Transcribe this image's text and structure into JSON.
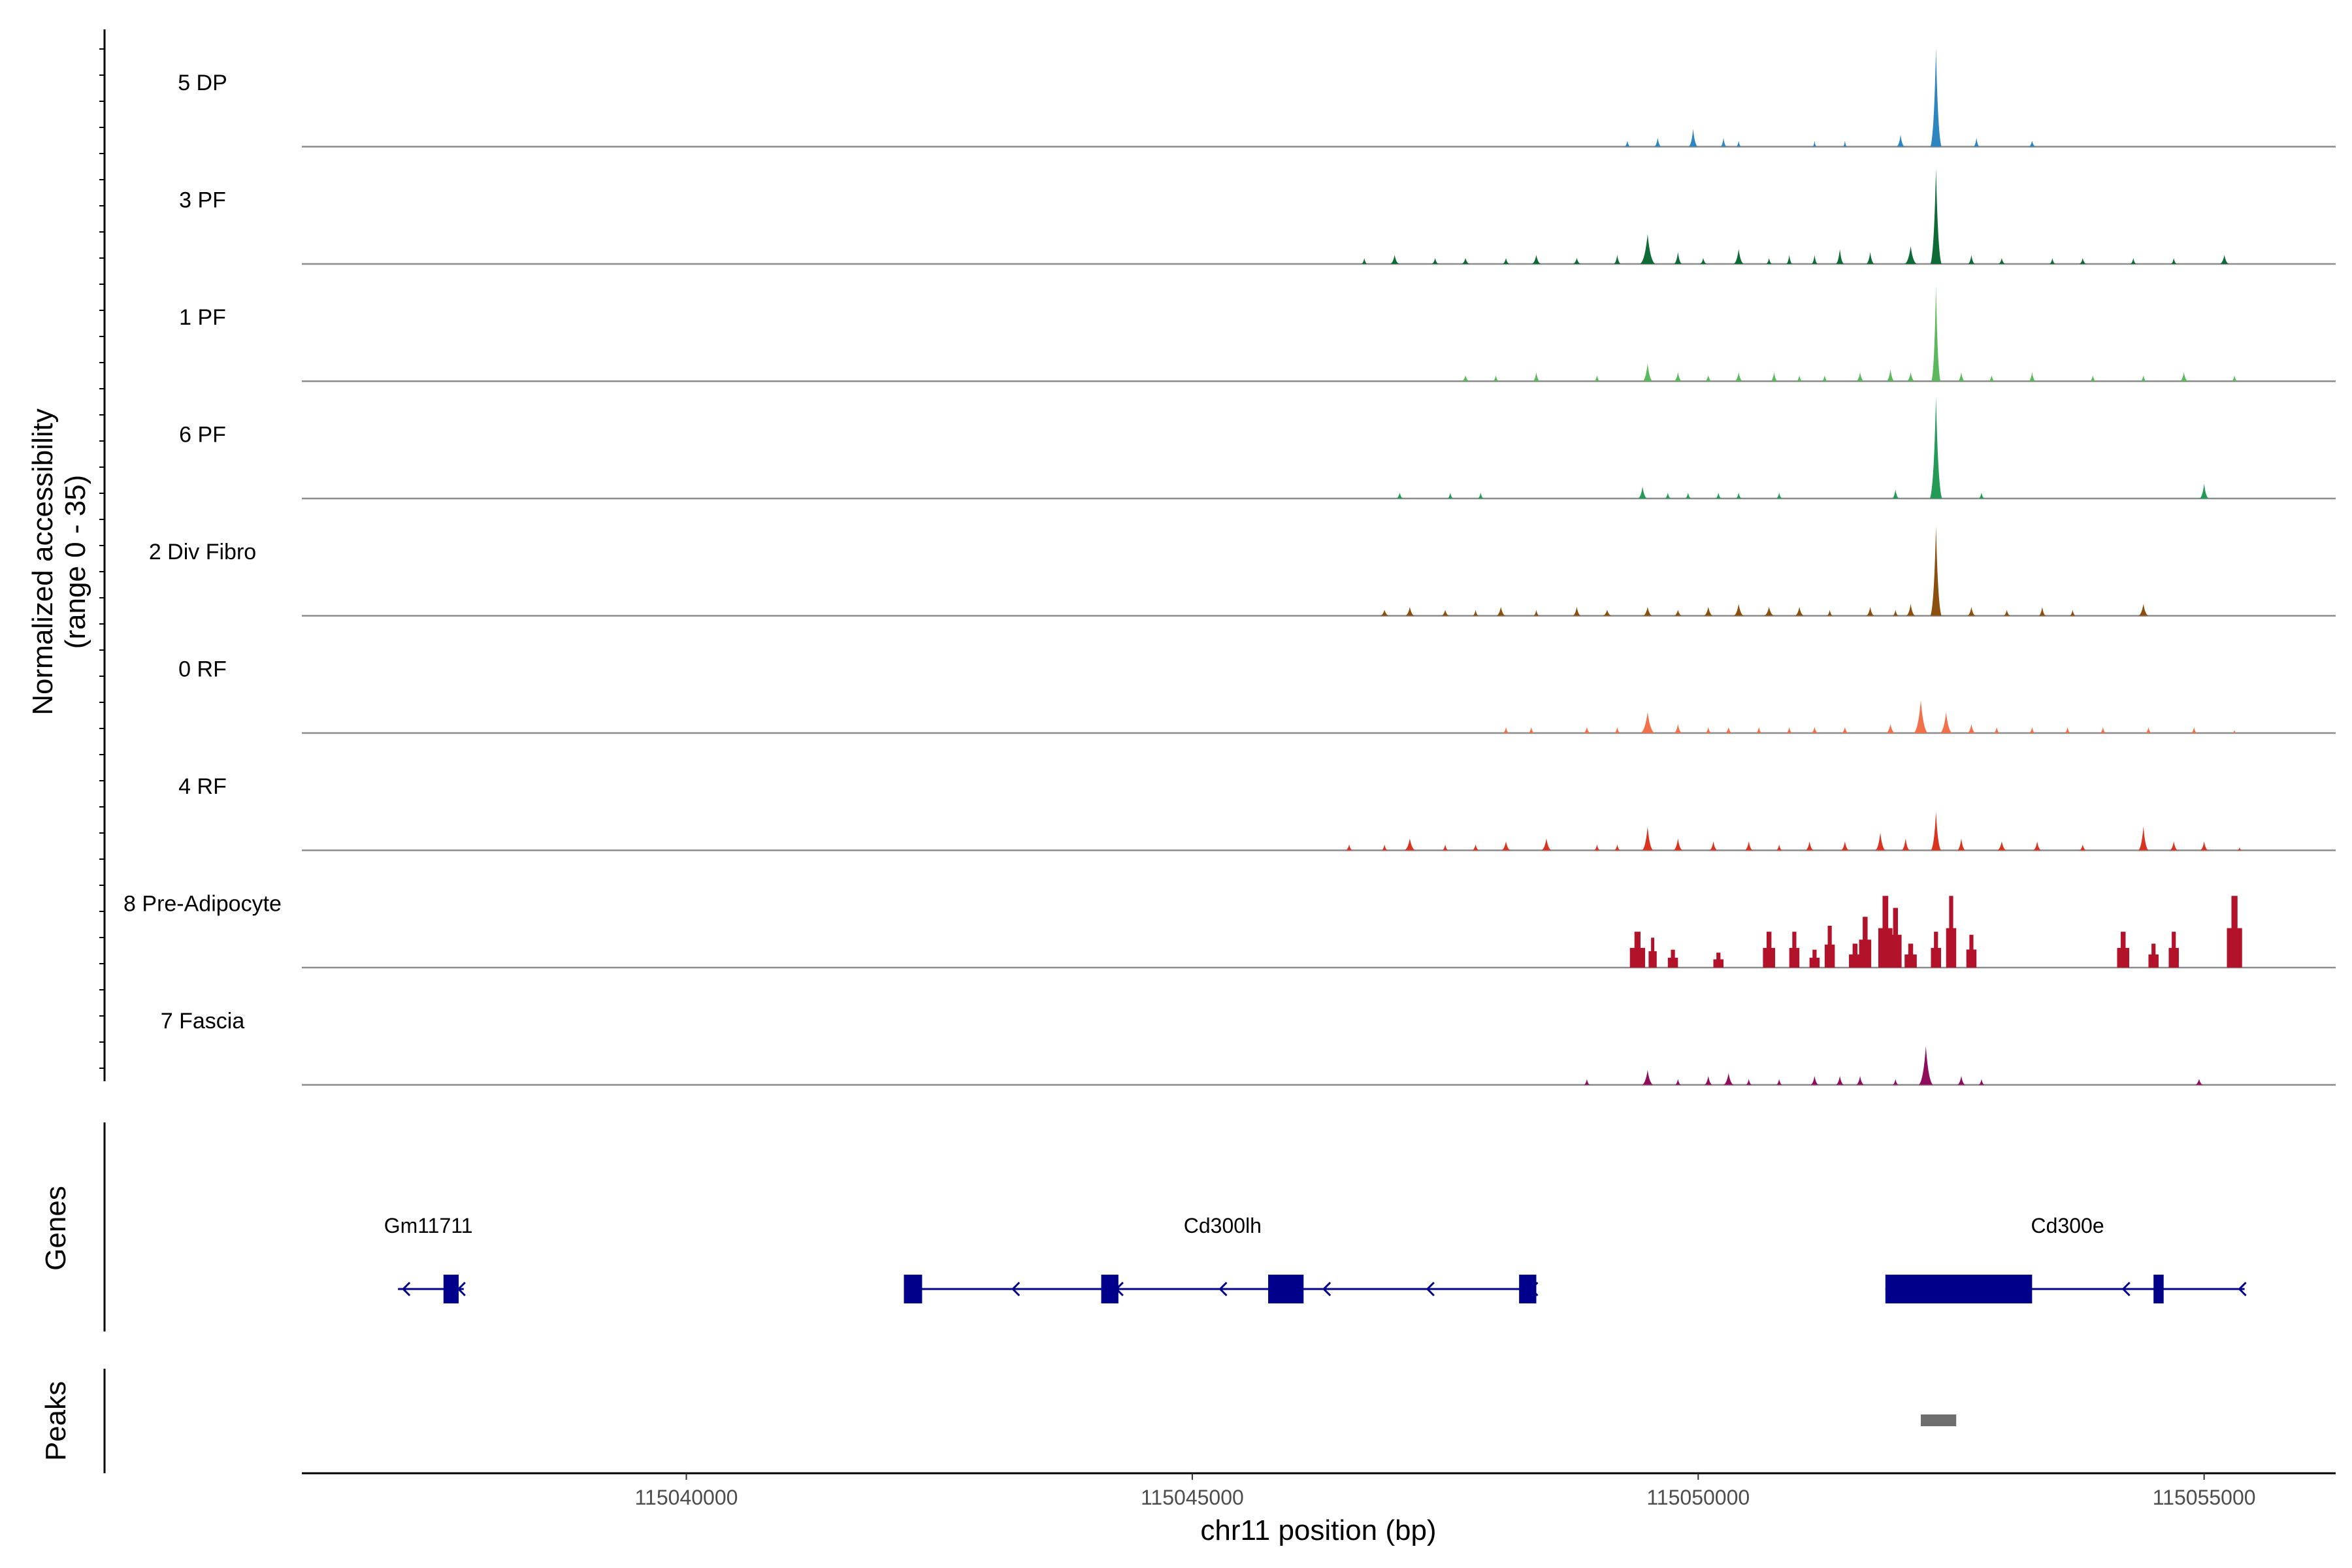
{
  "chart_data": {
    "type": "area",
    "title": "",
    "ylabel_lines": [
      "Normalized accessibility",
      "(range 0 - 35)"
    ],
    "xlabel": "chr11 position (bp)",
    "ylim": [
      0,
      35
    ],
    "xlim": [
      115036200,
      115056300
    ],
    "x_ticks": [
      115040000,
      115045000,
      115050000,
      115055000
    ],
    "x_tick_labels": [
      "115040000",
      "115045000",
      "115050000",
      "115055000"
    ],
    "tracks": [
      {
        "name": "5 DP",
        "color": "#2e86c1",
        "peaks": [
          [
            115049300,
            2,
            60
          ],
          [
            115049600,
            3,
            70
          ],
          [
            115049950,
            6,
            90
          ],
          [
            115050250,
            3,
            60
          ],
          [
            115050400,
            2,
            50
          ],
          [
            115051150,
            2,
            40
          ],
          [
            115051450,
            2,
            40
          ],
          [
            115052000,
            4,
            80
          ],
          [
            115052350,
            33,
            110
          ],
          [
            115052750,
            3,
            60
          ],
          [
            115053300,
            2,
            70
          ]
        ]
      },
      {
        "name": "3 PF",
        "color": "#0e6b35",
        "peaks": [
          [
            115046700,
            2,
            60
          ],
          [
            115047000,
            3,
            90
          ],
          [
            115047400,
            2,
            70
          ],
          [
            115047700,
            2,
            80
          ],
          [
            115048100,
            2,
            70
          ],
          [
            115048400,
            3,
            90
          ],
          [
            115048800,
            2,
            80
          ],
          [
            115049200,
            3,
            70
          ],
          [
            115049500,
            10,
            150
          ],
          [
            115049800,
            4,
            80
          ],
          [
            115050050,
            2,
            70
          ],
          [
            115050400,
            5,
            100
          ],
          [
            115050700,
            2,
            60
          ],
          [
            115050900,
            3,
            60
          ],
          [
            115051150,
            3,
            60
          ],
          [
            115051400,
            5,
            80
          ],
          [
            115051700,
            4,
            80
          ],
          [
            115052100,
            6,
            120
          ],
          [
            115052350,
            32,
            110
          ],
          [
            115052700,
            3,
            70
          ],
          [
            115053000,
            2,
            70
          ],
          [
            115053500,
            2,
            60
          ],
          [
            115053800,
            2,
            70
          ],
          [
            115054300,
            2,
            60
          ],
          [
            115054700,
            2,
            60
          ],
          [
            115055200,
            3,
            90
          ]
        ]
      },
      {
        "name": "1 PF",
        "color": "#5cb85c",
        "peaks": [
          [
            115047700,
            2,
            80
          ],
          [
            115048000,
            2,
            60
          ],
          [
            115048400,
            3,
            70
          ],
          [
            115049000,
            2,
            60
          ],
          [
            115049500,
            6,
            100
          ],
          [
            115049800,
            3,
            80
          ],
          [
            115050100,
            2,
            70
          ],
          [
            115050400,
            3,
            80
          ],
          [
            115050750,
            3,
            70
          ],
          [
            115051000,
            2,
            60
          ],
          [
            115051250,
            2,
            60
          ],
          [
            115051600,
            3,
            80
          ],
          [
            115051900,
            4,
            80
          ],
          [
            115052100,
            3,
            80
          ],
          [
            115052350,
            32,
            90
          ],
          [
            115052600,
            3,
            70
          ],
          [
            115052900,
            2,
            60
          ],
          [
            115053300,
            3,
            70
          ],
          [
            115053900,
            2,
            60
          ],
          [
            115054400,
            2,
            60
          ],
          [
            115054800,
            3,
            80
          ],
          [
            115055300,
            2,
            60
          ]
        ]
      },
      {
        "name": "6 PF",
        "color": "#239b56",
        "peaks": [
          [
            115047050,
            2,
            70
          ],
          [
            115047550,
            2,
            60
          ],
          [
            115047850,
            2,
            60
          ],
          [
            115049450,
            4,
            90
          ],
          [
            115049700,
            2,
            60
          ],
          [
            115049900,
            2,
            60
          ],
          [
            115050200,
            2,
            60
          ],
          [
            115050400,
            2,
            60
          ],
          [
            115050800,
            2,
            60
          ],
          [
            115051950,
            3,
            70
          ],
          [
            115052350,
            34,
            120
          ],
          [
            115052800,
            2,
            60
          ],
          [
            115055000,
            5,
            90
          ]
        ]
      },
      {
        "name": "2 Div Fibro",
        "color": "#8b4f0f",
        "peaks": [
          [
            115046900,
            2,
            90
          ],
          [
            115047150,
            3,
            90
          ],
          [
            115047500,
            2,
            80
          ],
          [
            115047800,
            2,
            60
          ],
          [
            115048050,
            3,
            90
          ],
          [
            115048400,
            2,
            60
          ],
          [
            115048800,
            3,
            80
          ],
          [
            115049100,
            2,
            90
          ],
          [
            115049500,
            3,
            90
          ],
          [
            115049800,
            2,
            80
          ],
          [
            115050100,
            3,
            90
          ],
          [
            115050400,
            4,
            100
          ],
          [
            115050700,
            3,
            100
          ],
          [
            115051000,
            3,
            90
          ],
          [
            115051300,
            2,
            60
          ],
          [
            115051700,
            3,
            80
          ],
          [
            115051950,
            2,
            60
          ],
          [
            115052100,
            4,
            90
          ],
          [
            115052350,
            30,
            110
          ],
          [
            115052700,
            3,
            80
          ],
          [
            115053050,
            2,
            70
          ],
          [
            115053400,
            3,
            70
          ],
          [
            115053700,
            2,
            60
          ],
          [
            115054400,
            4,
            100
          ]
        ]
      },
      {
        "name": "0 RF",
        "color": "#f0714a",
        "peaks": [
          [
            115048100,
            2,
            60
          ],
          [
            115048350,
            2,
            60
          ],
          [
            115048900,
            2,
            70
          ],
          [
            115049200,
            2,
            60
          ],
          [
            115049500,
            7,
            140
          ],
          [
            115049800,
            3,
            80
          ],
          [
            115050100,
            2,
            60
          ],
          [
            115050300,
            2,
            70
          ],
          [
            115050600,
            2,
            60
          ],
          [
            115050900,
            2,
            60
          ],
          [
            115051150,
            2,
            70
          ],
          [
            115051450,
            2,
            70
          ],
          [
            115051900,
            3,
            90
          ],
          [
            115052200,
            11,
            140
          ],
          [
            115052450,
            7,
            120
          ],
          [
            115052700,
            3,
            80
          ],
          [
            115052950,
            2,
            60
          ],
          [
            115053300,
            2,
            60
          ],
          [
            115053650,
            2,
            60
          ],
          [
            115054000,
            2,
            60
          ],
          [
            115054450,
            2,
            60
          ],
          [
            115054900,
            2,
            60
          ],
          [
            115055300,
            1,
            40
          ]
        ]
      },
      {
        "name": "4 RF",
        "color": "#d9341f",
        "peaks": [
          [
            115046550,
            2,
            70
          ],
          [
            115046900,
            2,
            60
          ],
          [
            115047150,
            4,
            110
          ],
          [
            115047500,
            2,
            60
          ],
          [
            115047800,
            2,
            70
          ],
          [
            115048100,
            3,
            90
          ],
          [
            115048500,
            4,
            100
          ],
          [
            115049000,
            2,
            60
          ],
          [
            115049200,
            2,
            60
          ],
          [
            115049500,
            8,
            110
          ],
          [
            115049800,
            4,
            90
          ],
          [
            115050150,
            3,
            80
          ],
          [
            115050500,
            3,
            80
          ],
          [
            115050800,
            2,
            60
          ],
          [
            115051100,
            3,
            80
          ],
          [
            115051450,
            3,
            80
          ],
          [
            115051800,
            6,
            100
          ],
          [
            115052050,
            4,
            80
          ],
          [
            115052350,
            13,
            100
          ],
          [
            115052600,
            4,
            80
          ],
          [
            115053000,
            3,
            90
          ],
          [
            115053350,
            3,
            80
          ],
          [
            115053800,
            2,
            70
          ],
          [
            115054400,
            8,
            100
          ],
          [
            115054700,
            3,
            80
          ],
          [
            115055000,
            3,
            80
          ],
          [
            115055350,
            1,
            40
          ]
        ]
      },
      {
        "name": "8 Pre-Adipocyte",
        "color": "#b3122b",
        "peaks": [
          [
            115049400,
            12,
            150
          ],
          [
            115049550,
            10,
            80
          ],
          [
            115049750,
            6,
            100
          ],
          [
            115050200,
            5,
            100
          ],
          [
            115050700,
            12,
            120
          ],
          [
            115050950,
            12,
            100
          ],
          [
            115051150,
            6,
            100
          ],
          [
            115051300,
            14,
            100
          ],
          [
            115051550,
            8,
            120
          ],
          [
            115051650,
            17,
            120
          ],
          [
            115051850,
            24,
            140
          ],
          [
            115051950,
            20,
            120
          ],
          [
            115052100,
            8,
            120
          ],
          [
            115052350,
            12,
            100
          ],
          [
            115052500,
            24,
            100
          ],
          [
            115052700,
            11,
            100
          ],
          [
            115054200,
            12,
            120
          ],
          [
            115054500,
            8,
            100
          ],
          [
            115054700,
            12,
            100
          ],
          [
            115055300,
            24,
            150
          ]
        ]
      },
      {
        "name": "7 Fascia",
        "color": "#8e0e5b",
        "peaks": [
          [
            115048900,
            2,
            60
          ],
          [
            115049500,
            5,
            110
          ],
          [
            115049800,
            2,
            60
          ],
          [
            115050100,
            3,
            80
          ],
          [
            115050300,
            4,
            100
          ],
          [
            115050500,
            2,
            60
          ],
          [
            115050800,
            2,
            60
          ],
          [
            115051150,
            3,
            80
          ],
          [
            115051400,
            3,
            80
          ],
          [
            115051600,
            3,
            80
          ],
          [
            115051950,
            2,
            60
          ],
          [
            115052250,
            13,
            140
          ],
          [
            115052600,
            3,
            80
          ],
          [
            115052800,
            2,
            60
          ],
          [
            115054950,
            2,
            80
          ]
        ]
      }
    ],
    "genes_label": "Genes",
    "peaks_label": "Peaks",
    "genes": [
      {
        "name": "Gm11711",
        "label_x": 115037450,
        "start": 115037150,
        "end": 115037800,
        "exons": [
          [
            115037600,
            115037750
          ]
        ],
        "strand": "-"
      },
      {
        "name": "Cd300lh",
        "label_x": 115045300,
        "start": 115042150,
        "end": 115048400,
        "exons": [
          [
            115042150,
            115042330
          ],
          [
            115044100,
            115044270
          ],
          [
            115045750,
            115046100
          ],
          [
            115048230,
            115048400
          ]
        ],
        "strand": "-"
      },
      {
        "name": "Cd300e",
        "label_x": 115053650,
        "start": 115051850,
        "end": 115055400,
        "exons": [
          [
            115051850,
            115053300
          ],
          [
            115054500,
            115054600
          ]
        ],
        "strand": "-"
      }
    ],
    "peak_regions": [
      [
        115052200,
        115052550
      ]
    ]
  }
}
